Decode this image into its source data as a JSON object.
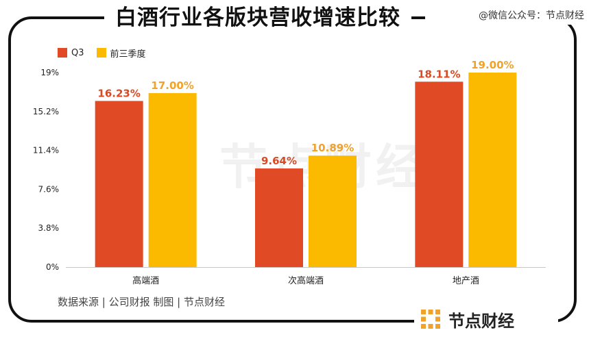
{
  "header": {
    "title": "白酒行业各版块营收增速比较",
    "wechat": "@微信公众号：节点财经"
  },
  "footer": {
    "source": "数据来源 | 公司财报   制图 | 节点财经",
    "brand": "节点财经"
  },
  "watermark": "节点财经",
  "colors": {
    "q3": "#e04b25",
    "first3q": "#fbb900",
    "q3_label": "#d84a24",
    "first3q_label": "#f0a22a"
  },
  "chart_data": {
    "type": "bar",
    "title": "白酒行业各版块营收增速比较",
    "xlabel": "",
    "ylabel": "",
    "categories": [
      "高端酒",
      "次高端酒",
      "地产酒"
    ],
    "series": [
      {
        "name": "Q3",
        "values": [
          16.23,
          9.64,
          18.11
        ],
        "labels": [
          "16.23%",
          "9.64%",
          "18.11%"
        ]
      },
      {
        "name": "前三季度",
        "values": [
          17.0,
          10.89,
          19.0
        ],
        "labels": [
          "17.00%",
          "10.89%",
          "19.00%"
        ]
      }
    ],
    "ylim": [
      0,
      19
    ],
    "yticks": [
      0,
      3.8,
      7.6,
      11.4,
      15.2,
      19
    ],
    "ytick_labels": [
      "0%",
      "3.8%",
      "7.6%",
      "11.4%",
      "15.2%",
      "19%"
    ],
    "grid": false,
    "legend": "top-left"
  }
}
